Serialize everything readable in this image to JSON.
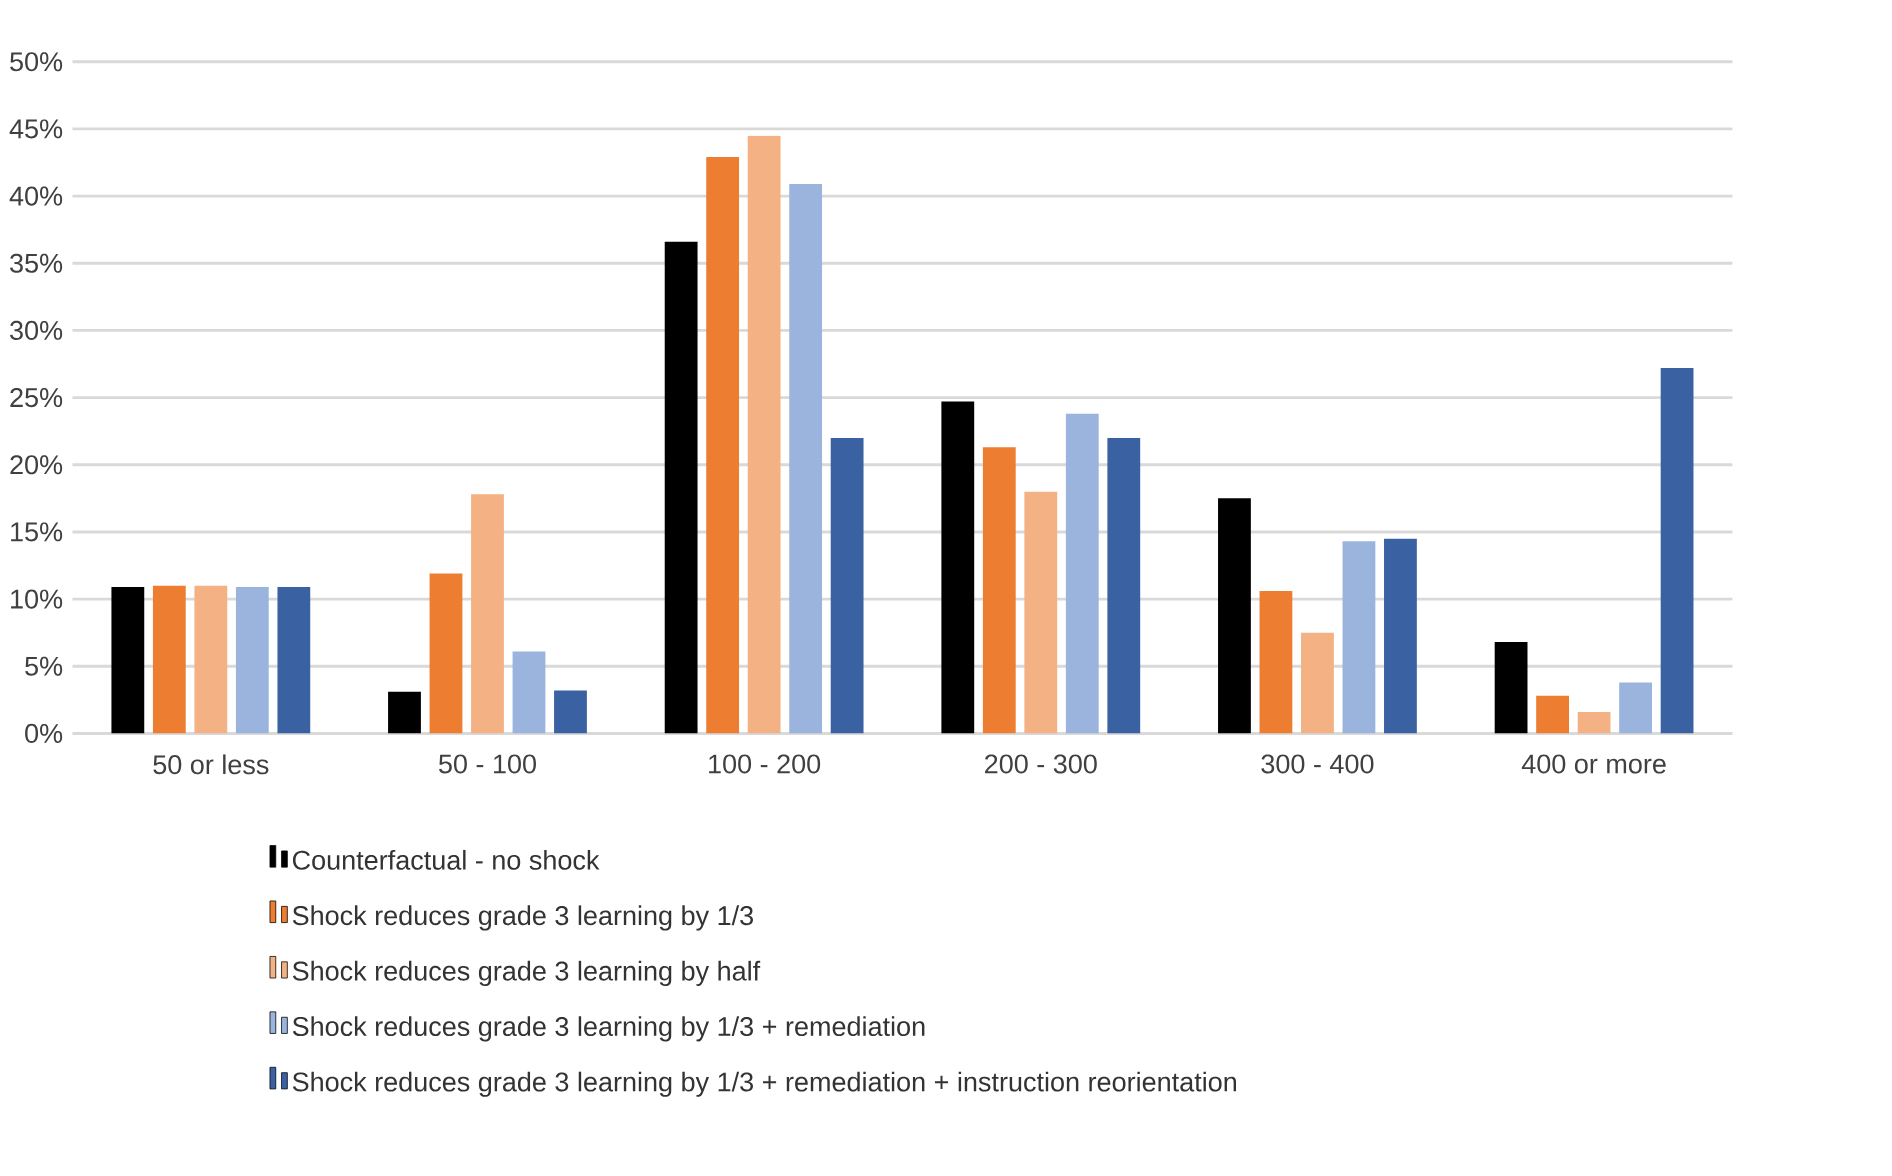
{
  "chart_data": {
    "type": "bar",
    "categories": [
      "50 or less",
      "50 - 100",
      "100 - 200",
      "200 - 300",
      "300 - 400",
      "400 or more"
    ],
    "series": [
      {
        "name": "Counterfactual - no shock",
        "color": "#000000",
        "values": [
          10.9,
          3.1,
          36.6,
          24.7,
          17.5,
          6.8
        ]
      },
      {
        "name": "Shock reduces grade 3 learning by 1/3",
        "color": "#ed7d31",
        "values": [
          11.0,
          11.9,
          42.9,
          21.3,
          10.6,
          2.8
        ]
      },
      {
        "name": "Shock reduces grade 3 learning by half",
        "color": "#f4b183",
        "values": [
          11.0,
          17.8,
          44.5,
          18.0,
          7.5,
          1.6
        ]
      },
      {
        "name": "Shock reduces grade 3 learning by 1/3 + remediation",
        "color": "#9ab4de",
        "values": [
          10.9,
          6.1,
          40.9,
          23.8,
          14.3,
          3.8
        ]
      },
      {
        "name": "Shock reduces grade 3 learning by 1/3 + remediation + instruction reorientation",
        "color": "#3a62a2",
        "values": [
          10.9,
          3.2,
          22.0,
          22.0,
          14.5,
          27.2
        ]
      }
    ],
    "ylim": [
      0,
      50
    ],
    "yticks": [
      {
        "value": 0,
        "label": "0%"
      },
      {
        "value": 5,
        "label": "5%"
      },
      {
        "value": 10,
        "label": "10%"
      },
      {
        "value": 15,
        "label": "15%"
      },
      {
        "value": 20,
        "label": "20%"
      },
      {
        "value": 25,
        "label": "25%"
      },
      {
        "value": 30,
        "label": "30%"
      },
      {
        "value": 35,
        "label": "35%"
      },
      {
        "value": 40,
        "label": "40%"
      },
      {
        "value": 45,
        "label": "45%"
      },
      {
        "value": 50,
        "label": "50%"
      }
    ],
    "grid": "y",
    "legend": "bottom"
  }
}
